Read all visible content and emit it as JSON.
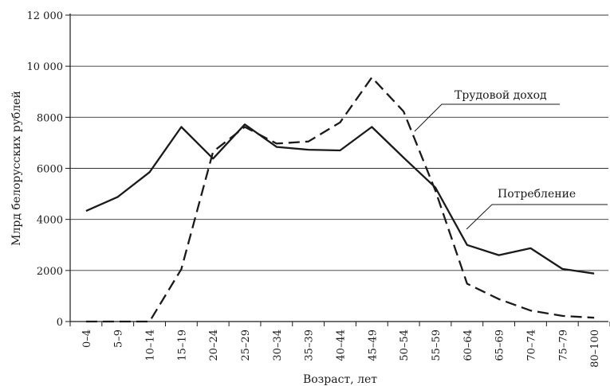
{
  "chart_data": {
    "type": "line",
    "title": "",
    "xlabel": "Возраст, лет",
    "ylabel": "Млрд белорусских рублей",
    "ylim": [
      0,
      12000
    ],
    "yticks": [
      0,
      2000,
      4000,
      6000,
      8000,
      10000,
      12000
    ],
    "ytick_labels": [
      "0",
      "2000",
      "4000",
      "6000",
      "8000",
      "10 000",
      "12 000"
    ],
    "grid": "horizontal",
    "categories": [
      "0–4",
      "5–9",
      "10–14",
      "15–19",
      "20–24",
      "25–29",
      "30–34",
      "35–39",
      "40–44",
      "45–49",
      "50–54",
      "55–59",
      "60–64",
      "65–69",
      "70–74",
      "75–79",
      "80–100"
    ],
    "series": [
      {
        "name": "Потребление",
        "style": "solid",
        "color": "#1a1a1a",
        "values": [
          4330,
          4880,
          5850,
          7620,
          6380,
          7720,
          6840,
          6730,
          6700,
          7620,
          6420,
          5250,
          3000,
          2600,
          2870,
          2060,
          1880
        ]
      },
      {
        "name": "Трудовой доход",
        "style": "dashed",
        "color": "#1a1a1a",
        "values": [
          0,
          0,
          0,
          2050,
          6650,
          7620,
          6970,
          7050,
          7800,
          9560,
          8230,
          5130,
          1480,
          880,
          430,
          220,
          150
        ]
      }
    ]
  }
}
